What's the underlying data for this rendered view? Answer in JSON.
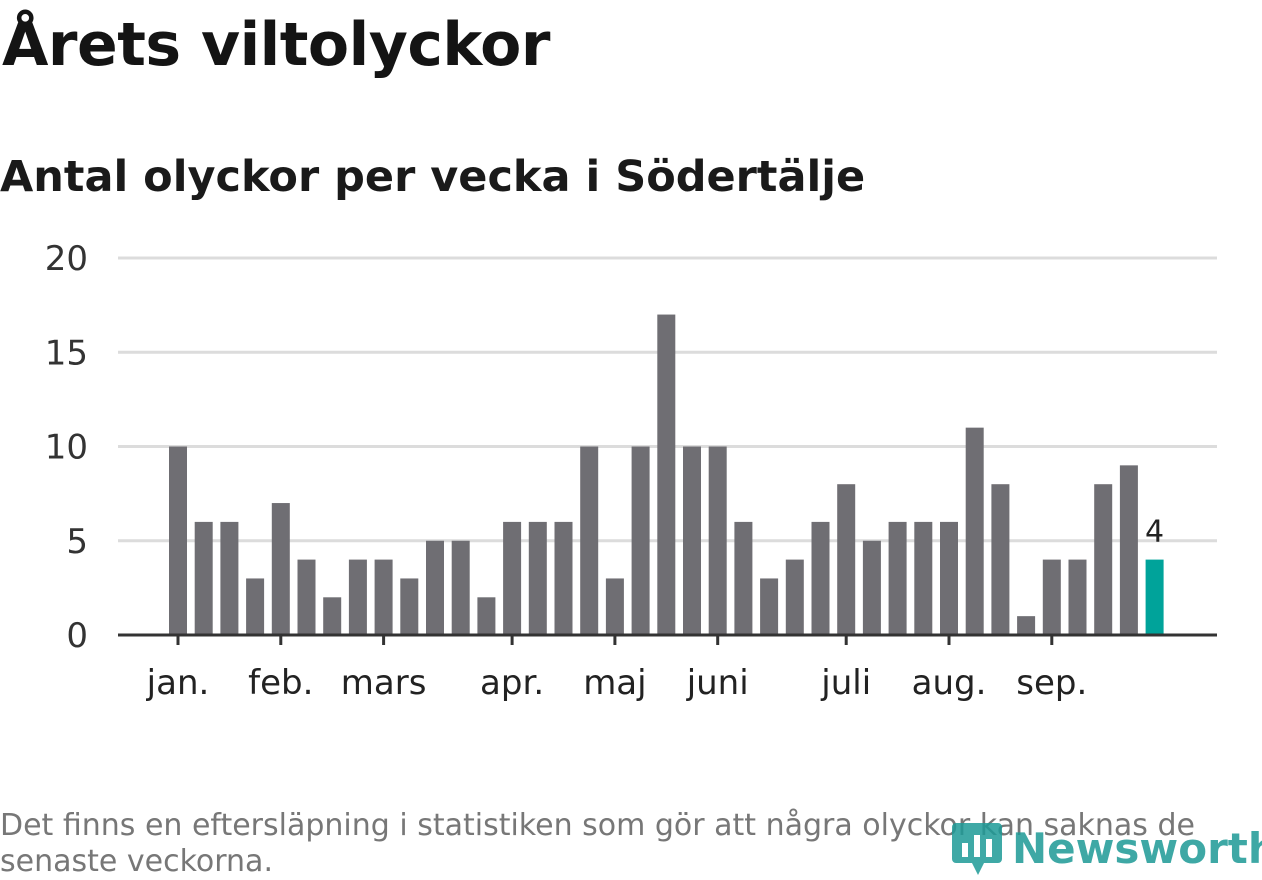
{
  "header": {
    "title": "Årets viltolyckor",
    "subtitle": "Antal olyckor per vecka i Södertälje"
  },
  "chart_data": {
    "type": "bar",
    "title": "Årets viltolyckor",
    "subtitle": "Antal olyckor per vecka i Södertälje",
    "xlabel": "",
    "ylabel": "",
    "ylim": [
      0,
      20
    ],
    "yticks": [
      0,
      5,
      10,
      15,
      20
    ],
    "grid": true,
    "month_labels": [
      "jan.",
      "feb.",
      "mars",
      "apr.",
      "maj",
      "juni",
      "juli",
      "aug.",
      "sep."
    ],
    "month_week_index": [
      0,
      4,
      8,
      13,
      17,
      21,
      26,
      30,
      34
    ],
    "values": [
      10,
      6,
      6,
      3,
      7,
      4,
      2,
      4,
      4,
      3,
      5,
      5,
      2,
      6,
      6,
      6,
      10,
      3,
      10,
      17,
      10,
      10,
      6,
      3,
      4,
      6,
      8,
      5,
      6,
      6,
      6,
      11,
      8,
      1,
      4,
      4,
      8,
      9,
      4
    ],
    "highlight_index": 38,
    "highlight_label": "4",
    "colors": {
      "bar": "#6f6e73",
      "highlight": "#00a39a",
      "grid": "#dcdcdc",
      "axis": "#333333"
    }
  },
  "footer": {
    "note": "Det finns en eftersläpning i statistiken som gör att några olyckor kan saknas de senaste veckorna.",
    "logo_text": "Newsworthy"
  }
}
